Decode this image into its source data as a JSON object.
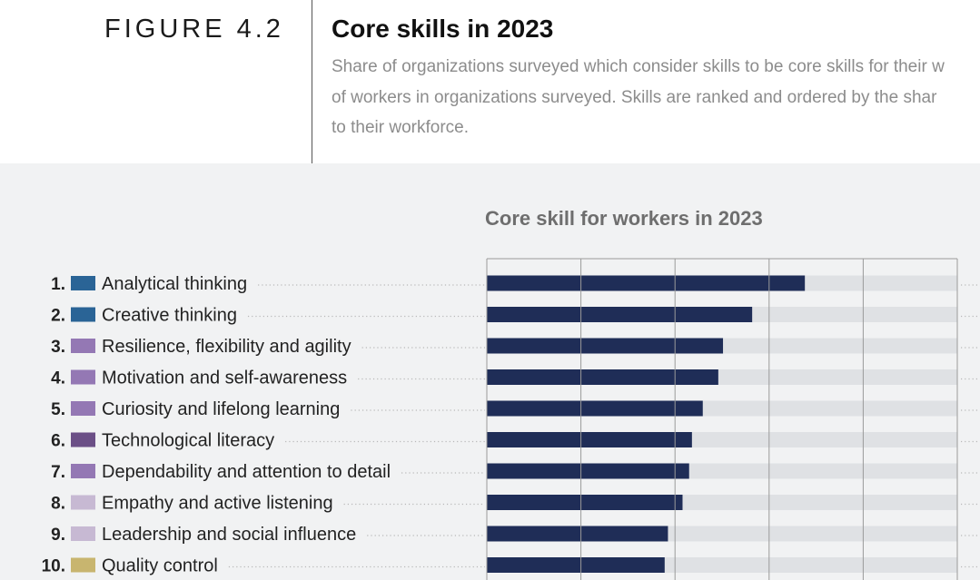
{
  "figure": {
    "label": "FIGURE 4.2",
    "title": "Core skills in 2023",
    "subtitle_lines": [
      "Share of organizations surveyed which consider skills to be core skills for their w",
      "of  workers in organizations surveyed. Skills are ranked and ordered by the shar",
      "to their workforce."
    ]
  },
  "colors": {
    "bar_value": "#1f2d57",
    "bar_track": "#dfe1e4",
    "cat_cognitive": "#2a6496",
    "cat_selfefficacy": "#9478b4",
    "cat_technology": "#6b4f86",
    "cat_working": "#c7b9d3",
    "cat_engagement": "#c8b56f"
  },
  "chart_data": {
    "type": "bar",
    "orientation": "horizontal",
    "title": "Core skill for workers in 2023",
    "xlim": [
      0,
      100
    ],
    "grid": true,
    "categories": [
      {
        "rank": "1.",
        "label": "Analytical thinking",
        "color": "#2a6496",
        "value": 67.6
      },
      {
        "rank": "2.",
        "label": "Creative thinking",
        "color": "#2a6496",
        "value": 56.4
      },
      {
        "rank": "3.",
        "label": "Resilience, flexibility and agility",
        "color": "#9478b4",
        "value": 50.2
      },
      {
        "rank": "4.",
        "label": "Motivation and self-awareness",
        "color": "#9478b4",
        "value": 49.2
      },
      {
        "rank": "5.",
        "label": "Curiosity and lifelong learning",
        "color": "#9478b4",
        "value": 45.9
      },
      {
        "rank": "6.",
        "label": "Technological literacy",
        "color": "#6b4f86",
        "value": 43.6
      },
      {
        "rank": "7.",
        "label": "Dependability and attention to detail",
        "color": "#9478b4",
        "value": 43.0
      },
      {
        "rank": "8.",
        "label": "Empathy and active listening",
        "color": "#c7b9d3",
        "value": 41.6
      },
      {
        "rank": "9.",
        "label": "Leadership and social influence",
        "color": "#c7b9d3",
        "value": 38.5
      },
      {
        "rank": "10.",
        "label": "Quality control",
        "color": "#c8b56f",
        "value": 37.8
      }
    ]
  }
}
